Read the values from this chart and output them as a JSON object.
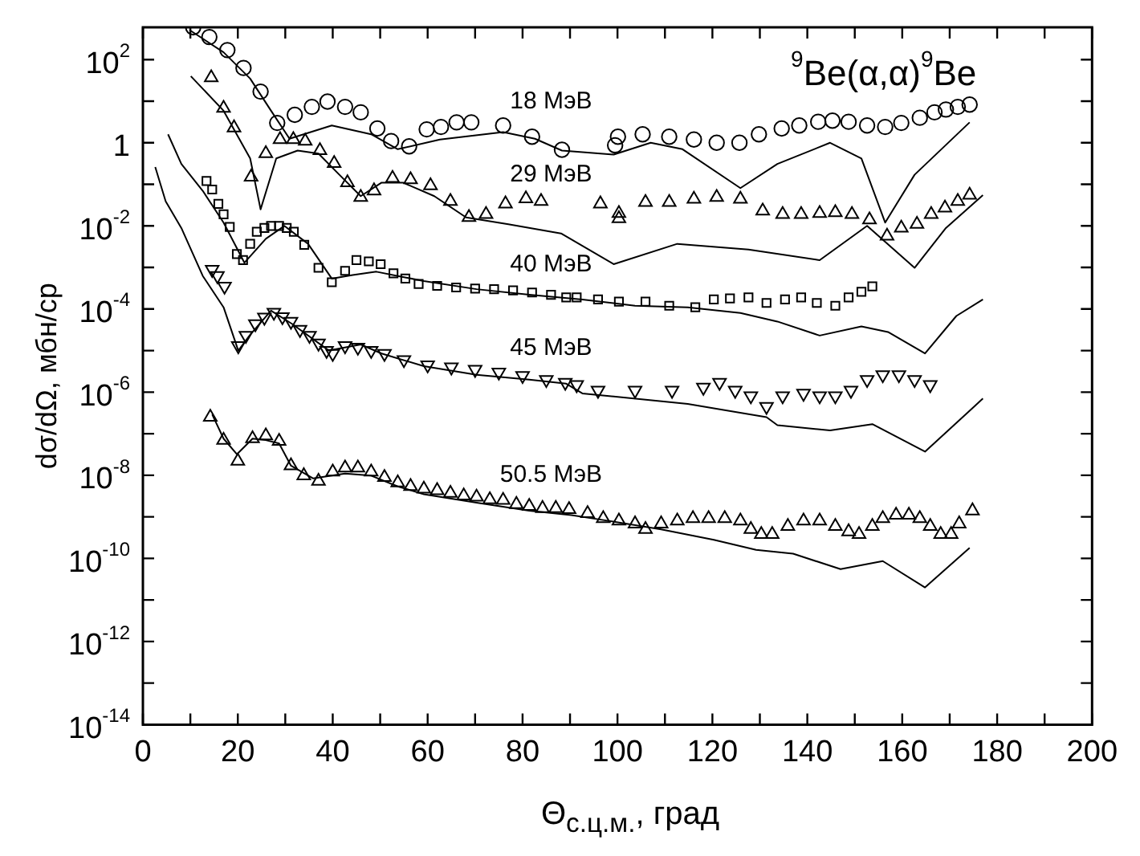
{
  "chart_data": {
    "type": "scatter",
    "title": "$^{9}$Be(α,α)$^{9}$Be",
    "xlabel": "Θ$_{с.ц.м.}$, град",
    "ylabel": "dσ/dΩ, мбн/ср",
    "log": "y",
    "grid": false,
    "xlim": [
      0,
      200
    ],
    "xticks": [
      0,
      {
        "value": 10,
        "label": null
      },
      20,
      {
        "value": 30,
        "label": null
      },
      40,
      {
        "value": 50,
        "label": null
      },
      60,
      {
        "value": 70,
        "label": null
      },
      80,
      {
        "value": 90,
        "label": null
      },
      100,
      {
        "value": 110,
        "label": null
      },
      120,
      {
        "value": 130,
        "label": null
      },
      140,
      {
        "value": 150,
        "label": null
      },
      160,
      {
        "value": 170,
        "label": null
      },
      180,
      {
        "value": 190,
        "label": null
      },
      200
    ],
    "ylim": [
      1e-14,
      600
    ],
    "yticks": [
      {
        "value": 1e-14,
        "label": "10$^{-14}$"
      },
      {
        "value": 1e-13,
        "label": null
      },
      {
        "value": 1e-12,
        "label": "10$^{-12}$"
      },
      {
        "value": 1e-11,
        "label": null
      },
      {
        "value": 1e-10,
        "label": "10$^{-10}$"
      },
      {
        "value": 1e-09,
        "label": null
      },
      {
        "value": 1e-08,
        "label": "10$^{-8}$"
      },
      {
        "value": 1e-07,
        "label": null
      },
      {
        "value": 1e-06,
        "label": "10$^{-6}$"
      },
      {
        "value": 1e-05,
        "label": null
      },
      {
        "value": 0.0001,
        "label": "10$^{-4}$"
      },
      {
        "value": 0.001,
        "label": null
      },
      {
        "value": 0.01,
        "label": "10$^{-2}$"
      },
      {
        "value": 0.1,
        "label": null
      },
      1,
      {
        "value": 10,
        "label": null
      },
      {
        "value": 100,
        "label": "10$^{2}$"
      }
    ],
    "series": [
      {
        "type": "scatter",
        "name": "18 МэВ",
        "marker": "circle",
        "color": "#000000",
        "x": [
          10.6,
          14,
          17.8,
          21.2,
          24.8,
          28.3,
          32,
          35.6,
          38.9,
          42.6,
          45.9,
          49.4,
          52.3,
          56.1,
          59.8,
          62.8,
          66.1,
          69.2,
          75.9,
          82,
          88.3,
          99.5,
          100.1,
          105.3,
          110.9,
          116.1,
          120.9,
          125.7,
          129.8,
          134.6,
          138.3,
          142.3,
          145.3,
          148.7,
          152.6,
          156.4,
          159.8,
          163.7,
          166.8,
          169.2,
          171.7,
          174.2
        ],
        "values": [
          600,
          350,
          170,
          63,
          17,
          3,
          4.7,
          7.3,
          9.8,
          7.3,
          5.4,
          2.2,
          1.1,
          0.82,
          2.1,
          2.4,
          3.1,
          3.1,
          2.6,
          1.4,
          0.68,
          0.87,
          1.4,
          1.6,
          1.4,
          1.2,
          1.0,
          1.0,
          1.6,
          2.2,
          2.6,
          3.2,
          3.4,
          3.2,
          2.6,
          2.4,
          3.0,
          4.0,
          5.4,
          6.3,
          7.3,
          8.3
        ]
      },
      {
        "type": "line",
        "marker": "none",
        "color": "#000000",
        "x": [
          9.8,
          17,
          22.6,
          27,
          30.9,
          39.8,
          48.1,
          53.7,
          62.6,
          75.9,
          82.6,
          88.3,
          99.2,
          107,
          113.7,
          125.9,
          133.7,
          144.8,
          151.4,
          156.4,
          162.6,
          174.2
        ],
        "values": [
          520,
          150,
          35,
          5.9,
          1.25,
          2.6,
          1.6,
          0.7,
          1.2,
          1.8,
          1.25,
          0.65,
          0.52,
          1.0,
          0.7,
          0.081,
          0.31,
          1.0,
          0.42,
          0.012,
          0.17,
          3.1
        ]
      },
      {
        "type": "scatter",
        "name": "29 МэВ",
        "marker": "triangle",
        "color": "#000000",
        "x": [
          14.4,
          17,
          19.2,
          22.8,
          25.9,
          28.9,
          31.7,
          34.2,
          37.3,
          40.3,
          43.1,
          45.9,
          48.7,
          52.6,
          56.4,
          60.6,
          64.8,
          68.7,
          72.3,
          76.4,
          80.7,
          83.9,
          96.4,
          100.3,
          100.3,
          105.9,
          110.9,
          116.1,
          120.9,
          125.9,
          130.6,
          134.8,
          138.7,
          142.6,
          145.9,
          149.4,
          153.1,
          156.8,
          159.8,
          163.1,
          166.1,
          169,
          171.7,
          174.2
        ],
        "values": [
          37,
          6.8,
          2.3,
          0.15,
          0.55,
          1.2,
          1.2,
          1.1,
          0.65,
          0.32,
          0.11,
          0.049,
          0.07,
          0.14,
          0.13,
          0.093,
          0.039,
          0.016,
          0.019,
          0.034,
          0.045,
          0.039,
          0.034,
          0.02,
          0.015,
          0.037,
          0.037,
          0.044,
          0.049,
          0.044,
          0.023,
          0.019,
          0.019,
          0.02,
          0.021,
          0.019,
          0.014,
          0.0057,
          0.0089,
          0.011,
          0.019,
          0.027,
          0.039,
          0.055
        ]
      },
      {
        "type": "line",
        "marker": "none",
        "color": "#000000",
        "x": [
          10.1,
          17,
          22.6,
          24.8,
          28.1,
          32.6,
          37,
          41.4,
          45.9,
          50.3,
          54.8,
          61.4,
          68.1,
          77,
          88.1,
          99.2,
          112.6,
          127.6,
          142.6,
          152.6,
          162.6,
          169.2,
          177
        ],
        "values": [
          40,
          5.9,
          0.42,
          0.025,
          0.42,
          0.65,
          0.55,
          0.17,
          0.052,
          0.11,
          0.11,
          0.052,
          0.016,
          0.011,
          0.0066,
          0.0012,
          0.0037,
          0.0027,
          0.0015,
          0.01,
          0.00098,
          0.0089,
          0.055
        ]
      },
      {
        "type": "scatter",
        "name": "40 МэВ",
        "marker": "square",
        "color": "#000000",
        "x": [
          13.4,
          14.6,
          15.9,
          17,
          18.3,
          19.8,
          21.1,
          22.6,
          24,
          25.6,
          27,
          28.7,
          30.3,
          31.8,
          34,
          37,
          39.8,
          42.6,
          45,
          47.6,
          50.1,
          52.8,
          55.3,
          58.1,
          62,
          66,
          70,
          74,
          78,
          82,
          86,
          89.2,
          91.4,
          95.9,
          100.3,
          105.9,
          110.9,
          116.4,
          120.3,
          123.7,
          127.6,
          131.4,
          135.3,
          138.7,
          142,
          145.9,
          148.7,
          151.4,
          153.7
        ],
        "values": [
          0.12,
          0.075,
          0.034,
          0.019,
          0.0094,
          0.0021,
          0.0015,
          0.0037,
          0.0072,
          0.0089,
          0.01,
          0.01,
          0.0089,
          0.0072,
          0.0035,
          0.00098,
          0.00044,
          0.00083,
          0.0015,
          0.0014,
          0.0012,
          0.00072,
          0.00054,
          0.0004,
          0.00036,
          0.00033,
          0.00031,
          0.0003,
          0.00028,
          0.00025,
          0.00022,
          0.00019,
          0.00019,
          0.00017,
          0.00015,
          0.00015,
          0.00012,
          0.00011,
          0.00017,
          0.00018,
          0.00019,
          0.00014,
          0.00017,
          0.00019,
          0.00014,
          0.00012,
          0.00019,
          0.00026,
          0.00035
        ]
      },
      {
        "type": "line",
        "marker": "none",
        "color": "#000000",
        "x": [
          5.3,
          8.1,
          12.6,
          17,
          21.4,
          25.9,
          29.8,
          34.8,
          39.8,
          44.2,
          49.2,
          54.8,
          59.2,
          70.3,
          81.4,
          92.6,
          103.7,
          114.8,
          125.9,
          133.7,
          142.6,
          151.4,
          157,
          164.8,
          171.4,
          177
        ],
        "values": [
          1.6,
          0.31,
          0.07,
          0.012,
          0.0013,
          0.0049,
          0.01,
          0.0037,
          0.00054,
          0.00066,
          0.00079,
          0.00059,
          0.00047,
          0.0003,
          0.00022,
          0.00017,
          0.00012,
          0.00011,
          8e-05,
          5e-05,
          2.3e-05,
          3.8e-05,
          2.8e-05,
          8.5e-06,
          6.8e-05,
          0.00017
        ]
      },
      {
        "type": "scatter",
        "name": "45 МэВ",
        "marker": "triangle-down",
        "color": "#000000",
        "x": [
          14.6,
          15.7,
          17.2,
          20.1,
          21.7,
          23.7,
          25.6,
          27.6,
          29.4,
          31.2,
          33.1,
          35.1,
          37,
          38.7,
          40,
          42.6,
          45.3,
          48.1,
          50.9,
          55,
          60,
          65,
          70,
          75,
          80,
          85,
          89,
          91.4,
          95.9,
          103.7,
          111.5,
          118.1,
          121.5,
          124.8,
          128.1,
          131.4,
          134.8,
          139.2,
          142.6,
          145.9,
          149.2,
          152.6,
          155.9,
          159.3,
          162.6,
          165.9
        ],
        "values": [
          0.00089,
          0.00063,
          0.00035,
          1.3e-05,
          2.3e-05,
          4.4e-05,
          6.3e-05,
          8.3e-05,
          6.5e-05,
          5e-05,
          3.2e-05,
          2.3e-05,
          1.5e-05,
          1e-05,
          8.5e-06,
          1.3e-05,
          1.2e-05,
          1e-05,
          8.5e-06,
          6e-06,
          4.5e-06,
          4e-06,
          3.5e-06,
          3e-06,
          2.5e-06,
          2e-06,
          1.7e-06,
          1.5e-06,
          1.1e-06,
          1.1e-06,
          1.1e-06,
          1.3e-06,
          1.7e-06,
          1.1e-06,
          8.1e-07,
          4.5e-07,
          8.1e-07,
          9.3e-07,
          8.1e-07,
          8.1e-07,
          1.1e-06,
          2e-06,
          2.6e-06,
          2.6e-06,
          2e-06,
          1.5e-06
        ]
      },
      {
        "type": "line",
        "marker": "none",
        "color": "#000000",
        "x": [
          2.6,
          4.8,
          8.1,
          12.6,
          17,
          20.1,
          22.6,
          27,
          31.4,
          39.2,
          45.9,
          50.3,
          59.2,
          70.3,
          81.4,
          89.2,
          92.6,
          114.8,
          131.4,
          133.7,
          144.8,
          153.7,
          164.8,
          177
        ],
        "values": [
          0.26,
          0.039,
          0.0089,
          0.00063,
          0.00011,
          1e-05,
          2.4e-05,
          9.1e-05,
          4.4e-05,
          1e-05,
          1.4e-05,
          8.5e-06,
          4.2e-06,
          2.6e-06,
          2e-06,
          1.6e-06,
          9.3e-07,
          5.2e-07,
          2.5e-07,
          1.6e-07,
          1.2e-07,
          1.7e-07,
          3.7e-08,
          7e-07
        ]
      },
      {
        "type": "scatter",
        "name": "50.5 МэВ",
        "marker": "triangle",
        "color": "#000000",
        "x": [
          14.2,
          17,
          20,
          23.1,
          25.9,
          28.7,
          31.2,
          33.9,
          37,
          40,
          42.6,
          45.3,
          48.1,
          50.9,
          53.7,
          56.4,
          59.2,
          62,
          64.8,
          67.6,
          70.3,
          73.1,
          75.9,
          78.7,
          81.4,
          84.2,
          87,
          89.8,
          93.7,
          97,
          100.3,
          103.7,
          105.9,
          109.2,
          112.6,
          115.9,
          119.2,
          122.6,
          125.9,
          128.1,
          130.3,
          132.6,
          135.9,
          139.2,
          142.6,
          145.9,
          148.7,
          150.9,
          153.7,
          155.9,
          158.7,
          161.4,
          163.7,
          165.9,
          168.1,
          170.3,
          172,
          174.8
        ],
        "values": [
          2.5e-07,
          7e-08,
          2.2e-08,
          7.6e-08,
          8.9e-08,
          6.6e-08,
          1.7e-08,
          9.8e-09,
          7.2e-09,
          1.2e-08,
          1.5e-08,
          1.5e-08,
          1.2e-08,
          8.9e-09,
          6.6e-09,
          5.4e-09,
          4.7e-09,
          4.3e-09,
          3.7e-09,
          3.2e-09,
          3e-09,
          2.6e-09,
          2.5e-09,
          2e-09,
          1.8e-09,
          1.6e-09,
          1.6e-09,
          1.5e-09,
          1.2e-09,
          9.1e-10,
          8e-10,
          6.8e-10,
          5e-10,
          6.8e-10,
          8e-10,
          9.1e-10,
          9.1e-10,
          9.1e-10,
          8e-10,
          5e-10,
          3.8e-10,
          3.8e-10,
          5.9e-10,
          8e-10,
          8e-10,
          5.9e-10,
          4.4e-10,
          3.8e-10,
          5.9e-10,
          9.1e-10,
          1.1e-09,
          1.1e-09,
          9.1e-10,
          5.9e-10,
          3.8e-10,
          3.8e-10,
          6.8e-10,
          1.4e-09
        ]
      },
      {
        "type": "line",
        "marker": "none",
        "color": "#000000",
        "x": [
          14.6,
          17,
          19.8,
          23.1,
          25.9,
          28.7,
          31.2,
          35.9,
          42.6,
          48.1,
          53.7,
          59.2,
          70.3,
          81.4,
          90.3,
          98.1,
          109.2,
          120.3,
          129.2,
          137,
          147,
          155.9,
          164.8,
          174.2
        ],
        "values": [
          2.9e-07,
          7.6e-08,
          3.2e-08,
          7.6e-08,
          7e-08,
          5.8e-08,
          1.7e-08,
          8.4e-09,
          1.1e-08,
          9.8e-09,
          5.4e-09,
          3.5e-09,
          2.2e-09,
          1.4e-09,
          1.1e-09,
          8e-10,
          5e-10,
          2.8e-10,
          1.6e-10,
          1.3e-10,
          5.5e-11,
          8.6e-11,
          2e-11,
          1.8e-10
        ]
      }
    ]
  }
}
